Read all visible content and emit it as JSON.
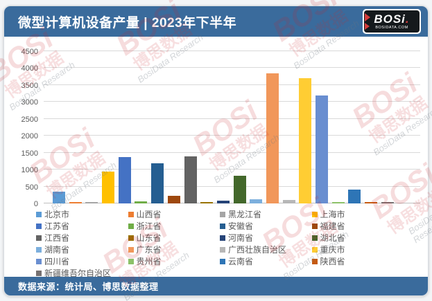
{
  "header": {
    "title": "微型计算机设备产量 | 2023年下半年",
    "logo": {
      "brand": "BOSi",
      "domain": "BOSIDATA.COM"
    }
  },
  "footer": {
    "source": "数据来源：统计局、博思数据整理"
  },
  "watermark": {
    "brand": "BOSi",
    "cn": "博思数据",
    "en": "BosiData Research"
  },
  "colors": {
    "accent": "#3a6b9c",
    "grid": "#d9d9d9",
    "axis_text": "#595959",
    "logo_red": "#d43b3b"
  },
  "chart_data": {
    "type": "bar",
    "title": "微型计算机设备产量 | 2023年下半年",
    "categories": [
      "北京市",
      "山西省",
      "黑龙江省",
      "上海市",
      "江苏省",
      "浙江省",
      "安徽省",
      "福建省",
      "江西省",
      "山东省",
      "河南省",
      "湖北省",
      "湖南省",
      "广东省",
      "广西壮族自治区",
      "重庆市",
      "四川省",
      "贵州省",
      "云南省",
      "陕西省",
      "新疆维吾尔自治区"
    ],
    "values": [
      350,
      30,
      30,
      950,
      1370,
      60,
      1190,
      230,
      1400,
      40,
      80,
      820,
      120,
      3850,
      110,
      3700,
      3200,
      30,
      410,
      30,
      30
    ],
    "colors": [
      "#5B9BD5",
      "#ED7D31",
      "#A5A5A5",
      "#FFC000",
      "#4472C4",
      "#70AD47",
      "#255E91",
      "#9E480E",
      "#636363",
      "#997300",
      "#264478",
      "#43682B",
      "#7CAFDD",
      "#F1975A",
      "#B7B7B7",
      "#FFCD33",
      "#698ED0",
      "#8CC168",
      "#2E75B6",
      "#C55A11",
      "#767171"
    ],
    "xlabel": "",
    "ylabel": "",
    "ylim": [
      0,
      4500
    ],
    "ytick_step": 500,
    "grid": true,
    "legend_position": "bottom"
  }
}
